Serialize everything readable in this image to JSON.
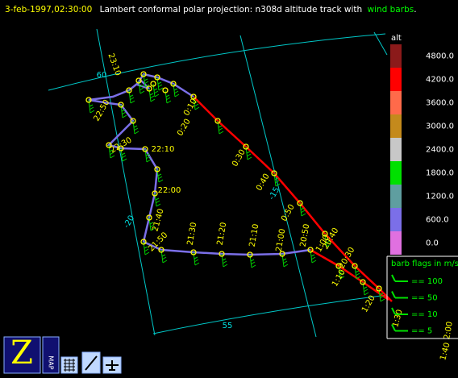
{
  "header": {
    "date": "3-feb-1997,02:30:00",
    "title": "Lambert conformal polar projection:  n308d altitude track with",
    "highlight": "wind barbs",
    "end": "."
  },
  "map": {
    "grid_labels": [
      "60",
      "-15",
      "-20",
      "55"
    ],
    "track_labels": [
      "23:10",
      "22:50",
      "22:30",
      "22:10",
      "22:00",
      "21:50",
      "21:40",
      "21:30",
      "21:20",
      "21:10",
      "21:00",
      "20:50",
      "20:40",
      "20:30",
      "0:10",
      "0:20",
      "0:30",
      "0:40",
      "0:50",
      "1:00",
      "1:10",
      "1:20",
      "1:30",
      "1:40",
      "2:00"
    ]
  },
  "colorbar": {
    "title": "alt",
    "labels": [
      "4800.0",
      "4200.0",
      "3600.0",
      "3000.0",
      "2400.0",
      "1800.0",
      "1200.0",
      "600.0",
      "0.0"
    ],
    "colors": [
      "#8b1a1a",
      "#ff0000",
      "#ff6a4a",
      "#c48a1c",
      "#c8c8c8",
      "#00e000",
      "#5f9ea0",
      "#7b6fe8",
      "#e070e0"
    ]
  },
  "barb_legend": {
    "title": "barb flags in m/s",
    "labels": [
      "== 100",
      "== 50",
      "== 10",
      "== 5"
    ]
  },
  "toolbar": {
    "map_button": "MAP"
  }
}
